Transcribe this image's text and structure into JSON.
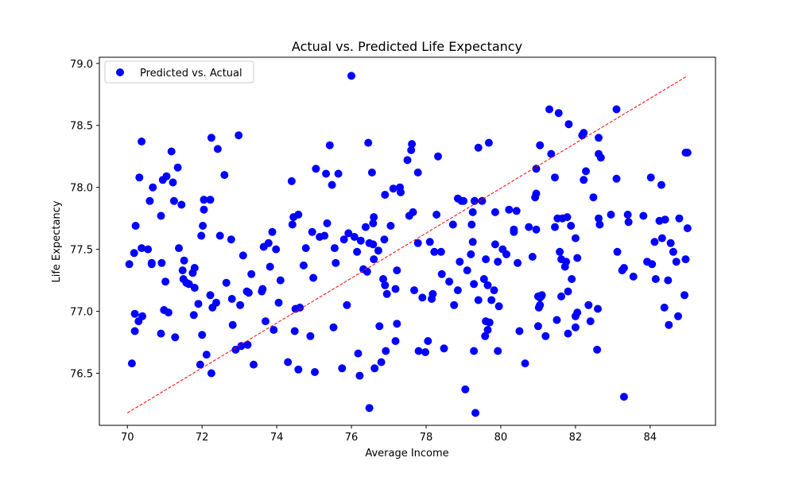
{
  "chart_data": {
    "type": "scatter",
    "title": "Actual vs. Predicted Life Expectancy",
    "xlabel": "Average Income",
    "ylabel": "Life Expectancy",
    "xlim": [
      69.25,
      85.75
    ],
    "ylim": [
      76.08,
      79.05
    ],
    "xticks": [
      70,
      72,
      74,
      76,
      78,
      80,
      82,
      84
    ],
    "yticks": [
      76.5,
      77.0,
      77.5,
      78.0,
      78.5,
      79.0
    ],
    "ytick_labels": [
      "76.5",
      "77.0",
      "77.5",
      "78.0",
      "78.5",
      "79.0"
    ],
    "grid": false,
    "legend_position": "top-left",
    "colors": {
      "points": "#0000ff",
      "trend": "#ff0000"
    },
    "series": [
      {
        "name": "Predicted vs. Actual",
        "kind": "scatter",
        "points": [
          [
            70.05,
            77.38
          ],
          [
            70.12,
            76.58
          ],
          [
            70.18,
            77.47
          ],
          [
            70.2,
            76.98
          ],
          [
            70.22,
            77.69
          ],
          [
            70.2,
            76.84
          ],
          [
            70.3,
            76.92
          ],
          [
            70.32,
            78.08
          ],
          [
            70.38,
            78.37
          ],
          [
            70.38,
            77.51
          ],
          [
            70.4,
            76.96
          ],
          [
            70.55,
            77.5
          ],
          [
            70.6,
            77.89
          ],
          [
            70.68,
            78.0
          ],
          [
            70.65,
            77.38
          ],
          [
            70.65,
            77.39
          ],
          [
            70.9,
            76.82
          ],
          [
            70.9,
            77.77
          ],
          [
            70.92,
            77.39
          ],
          [
            70.95,
            78.06
          ],
          [
            70.98,
            77.01
          ],
          [
            71.02,
            77.24
          ],
          [
            71.05,
            78.09
          ],
          [
            71.1,
            76.99
          ],
          [
            71.18,
            78.29
          ],
          [
            71.22,
            78.04
          ],
          [
            71.25,
            77.89
          ],
          [
            71.28,
            76.79
          ],
          [
            71.35,
            78.16
          ],
          [
            71.38,
            77.51
          ],
          [
            71.45,
            77.86
          ],
          [
            71.48,
            77.33
          ],
          [
            71.5,
            77.26
          ],
          [
            71.52,
            77.41
          ],
          [
            71.58,
            77.23
          ],
          [
            71.65,
            77.22
          ],
          [
            71.75,
            77.31
          ],
          [
            71.78,
            76.97
          ],
          [
            71.8,
            77.35
          ],
          [
            71.8,
            77.19
          ],
          [
            71.9,
            77.06
          ],
          [
            71.95,
            76.57
          ],
          [
            71.98,
            77.61
          ],
          [
            72.0,
            76.81
          ],
          [
            72.02,
            77.69
          ],
          [
            72.05,
            77.82
          ],
          [
            72.05,
            77.9
          ],
          [
            72.12,
            76.65
          ],
          [
            72.22,
            77.9
          ],
          [
            72.22,
            77.13
          ],
          [
            72.25,
            78.4
          ],
          [
            72.25,
            76.5
          ],
          [
            72.28,
            77.03
          ],
          [
            72.38,
            77.07
          ],
          [
            72.42,
            78.31
          ],
          [
            72.48,
            77.61
          ],
          [
            72.6,
            78.1
          ],
          [
            72.65,
            77.23
          ],
          [
            72.78,
            77.58
          ],
          [
            72.8,
            77.1
          ],
          [
            72.82,
            76.89
          ],
          [
            72.9,
            76.69
          ],
          [
            72.98,
            78.42
          ],
          [
            73.02,
            77.05
          ],
          [
            73.05,
            76.72
          ],
          [
            73.1,
            77.45
          ],
          [
            73.2,
            77.16
          ],
          [
            73.22,
            76.73
          ],
          [
            73.25,
            77.15
          ],
          [
            73.32,
            77.3
          ],
          [
            73.38,
            76.57
          ],
          [
            73.6,
            77.16
          ],
          [
            73.62,
            77.18
          ],
          [
            73.65,
            77.52
          ],
          [
            73.7,
            76.92
          ],
          [
            73.78,
            77.55
          ],
          [
            73.82,
            77.36
          ],
          [
            73.88,
            77.64
          ],
          [
            73.92,
            76.85
          ],
          [
            73.98,
            77.5
          ],
          [
            74.05,
            77.07
          ],
          [
            74.1,
            77.25
          ],
          [
            74.3,
            76.59
          ],
          [
            74.4,
            78.05
          ],
          [
            74.42,
            77.7
          ],
          [
            74.45,
            77.76
          ],
          [
            74.48,
            76.84
          ],
          [
            74.5,
            77.02
          ],
          [
            74.58,
            77.78
          ],
          [
            74.62,
            77.03
          ],
          [
            74.58,
            76.53
          ],
          [
            74.72,
            77.37
          ],
          [
            74.78,
            77.51
          ],
          [
            74.9,
            76.8
          ],
          [
            74.95,
            77.64
          ],
          [
            74.98,
            77.27
          ],
          [
            75.05,
            78.15
          ],
          [
            75.02,
            76.51
          ],
          [
            75.15,
            77.6
          ],
          [
            75.28,
            77.61
          ],
          [
            75.35,
            77.71
          ],
          [
            75.32,
            78.11
          ],
          [
            75.42,
            78.34
          ],
          [
            75.48,
            78.02
          ],
          [
            75.52,
            76.87
          ],
          [
            75.55,
            77.51
          ],
          [
            75.58,
            77.39
          ],
          [
            75.65,
            78.11
          ],
          [
            75.75,
            76.54
          ],
          [
            75.8,
            77.58
          ],
          [
            75.88,
            77.05
          ],
          [
            75.92,
            77.63
          ],
          [
            76.0,
            78.9
          ],
          [
            76.08,
            77.6
          ],
          [
            76.15,
            77.48
          ],
          [
            76.18,
            76.66
          ],
          [
            76.22,
            76.48
          ],
          [
            76.25,
            77.57
          ],
          [
            76.32,
            77.34
          ],
          [
            76.38,
            77.68
          ],
          [
            76.42,
            77.32
          ],
          [
            76.45,
            78.36
          ],
          [
            76.48,
            77.55
          ],
          [
            76.48,
            76.22
          ],
          [
            76.55,
            78.12
          ],
          [
            76.58,
            77.54
          ],
          [
            76.58,
            77.71
          ],
          [
            76.6,
            77.76
          ],
          [
            76.6,
            77.42
          ],
          [
            76.62,
            76.54
          ],
          [
            76.72,
            77.49
          ],
          [
            76.75,
            76.88
          ],
          [
            76.8,
            76.59
          ],
          [
            76.85,
            77.26
          ],
          [
            76.88,
            77.58
          ],
          [
            76.9,
            77.94
          ],
          [
            76.9,
            77.21
          ],
          [
            76.92,
            76.68
          ],
          [
            76.95,
            77.14
          ],
          [
            77.05,
            77.69
          ],
          [
            77.12,
            77.99
          ],
          [
            77.18,
            76.76
          ],
          [
            77.18,
            77.18
          ],
          [
            77.22,
            77.33
          ],
          [
            77.22,
            76.9
          ],
          [
            77.3,
            78.0
          ],
          [
            77.32,
            77.96
          ],
          [
            77.5,
            78.22
          ],
          [
            77.55,
            77.77
          ],
          [
            77.6,
            78.3
          ],
          [
            77.62,
            78.35
          ],
          [
            77.65,
            77.8
          ],
          [
            77.68,
            77.17
          ],
          [
            77.78,
            77.55
          ],
          [
            77.78,
            78.12
          ],
          [
            77.8,
            76.68
          ],
          [
            77.9,
            77.11
          ],
          [
            77.98,
            76.67
          ],
          [
            78.05,
            76.76
          ],
          [
            78.1,
            77.56
          ],
          [
            78.15,
            77.1
          ],
          [
            78.18,
            77.14
          ],
          [
            78.22,
            77.48
          ],
          [
            78.28,
            77.78
          ],
          [
            78.32,
            78.25
          ],
          [
            78.4,
            77.48
          ],
          [
            78.42,
            77.3
          ],
          [
            78.48,
            76.7
          ],
          [
            78.62,
            77.24
          ],
          [
            78.72,
            77.7
          ],
          [
            78.75,
            77.05
          ],
          [
            78.85,
            77.17
          ],
          [
            78.85,
            77.91
          ],
          [
            78.9,
            77.4
          ],
          [
            78.95,
            77.89
          ],
          [
            79.0,
            77.89
          ],
          [
            79.05,
            76.37
          ],
          [
            79.1,
            77.33
          ],
          [
            79.2,
            77.46
          ],
          [
            79.22,
            77.7
          ],
          [
            79.25,
            77.56
          ],
          [
            79.25,
            77.8
          ],
          [
            79.28,
            76.68
          ],
          [
            79.28,
            77.22
          ],
          [
            79.3,
            77.89
          ],
          [
            79.32,
            76.18
          ],
          [
            79.4,
            78.32
          ],
          [
            79.4,
            77.09
          ],
          [
            79.5,
            77.89
          ],
          [
            79.55,
            77.26
          ],
          [
            79.58,
            76.8
          ],
          [
            79.6,
            76.92
          ],
          [
            79.6,
            77.42
          ],
          [
            79.65,
            77.21
          ],
          [
            79.65,
            76.85
          ],
          [
            79.68,
            78.36
          ],
          [
            79.7,
            76.91
          ],
          [
            79.75,
            77.09
          ],
          [
            79.82,
            77.17
          ],
          [
            79.85,
            77.8
          ],
          [
            79.85,
            77.54
          ],
          [
            79.92,
            77.4
          ],
          [
            79.92,
            76.68
          ],
          [
            79.95,
            77.04
          ],
          [
            80.05,
            77.5
          ],
          [
            80.15,
            77.46
          ],
          [
            80.22,
            77.82
          ],
          [
            80.35,
            77.64
          ],
          [
            80.35,
            77.66
          ],
          [
            80.42,
            77.81
          ],
          [
            80.45,
            77.39
          ],
          [
            80.5,
            76.84
          ],
          [
            80.65,
            76.58
          ],
          [
            80.75,
            77.68
          ],
          [
            80.85,
            77.44
          ],
          [
            80.92,
            77.92
          ],
          [
            80.95,
            77.95
          ],
          [
            80.95,
            77.66
          ],
          [
            80.95,
            78.15
          ],
          [
            81.0,
            76.88
          ],
          [
            81.0,
            77.12
          ],
          [
            81.02,
            77.03
          ],
          [
            81.05,
            77.11
          ],
          [
            81.05,
            78.34
          ],
          [
            81.05,
            77.05
          ],
          [
            81.08,
            77.12
          ],
          [
            81.1,
            77.13
          ],
          [
            81.2,
            76.8
          ],
          [
            81.3,
            78.63
          ],
          [
            81.35,
            78.27
          ],
          [
            81.45,
            78.08
          ],
          [
            81.45,
            77.68
          ],
          [
            81.5,
            76.93
          ],
          [
            81.52,
            77.75
          ],
          [
            81.55,
            78.6
          ],
          [
            81.58,
            77.48
          ],
          [
            81.62,
            77.42
          ],
          [
            81.62,
            77.12
          ],
          [
            81.65,
            77.75
          ],
          [
            81.72,
            77.36
          ],
          [
            81.75,
            77.4
          ],
          [
            81.78,
            77.76
          ],
          [
            81.8,
            76.82
          ],
          [
            81.8,
            77.16
          ],
          [
            81.82,
            78.51
          ],
          [
            81.88,
            77.69
          ],
          [
            81.9,
            77.26
          ],
          [
            82.0,
            76.96
          ],
          [
            82.0,
            77.59
          ],
          [
            82.0,
            76.87
          ],
          [
            82.05,
            77.43
          ],
          [
            82.05,
            76.99
          ],
          [
            82.18,
            78.42
          ],
          [
            82.22,
            78.06
          ],
          [
            82.22,
            78.44
          ],
          [
            82.28,
            78.13
          ],
          [
            82.35,
            77.05
          ],
          [
            82.4,
            76.92
          ],
          [
            82.48,
            77.92
          ],
          [
            82.58,
            76.69
          ],
          [
            82.6,
            77.02
          ],
          [
            82.62,
            78.4
          ],
          [
            82.62,
            78.27
          ],
          [
            82.62,
            77.75
          ],
          [
            82.68,
            78.24
          ],
          [
            82.65,
            77.7
          ],
          [
            82.95,
            77.78
          ],
          [
            83.1,
            78.63
          ],
          [
            83.1,
            78.07
          ],
          [
            83.12,
            77.48
          ],
          [
            83.25,
            77.33
          ],
          [
            83.3,
            76.31
          ],
          [
            83.3,
            77.35
          ],
          [
            83.4,
            77.78
          ],
          [
            83.42,
            77.72
          ],
          [
            83.55,
            77.28
          ],
          [
            83.82,
            77.77
          ],
          [
            83.92,
            77.4
          ],
          [
            84.02,
            78.08
          ],
          [
            84.05,
            77.38
          ],
          [
            84.12,
            77.56
          ],
          [
            84.15,
            77.26
          ],
          [
            84.25,
            77.73
          ],
          [
            84.3,
            78.02
          ],
          [
            84.32,
            77.59
          ],
          [
            84.38,
            77.03
          ],
          [
            84.4,
            77.74
          ],
          [
            84.48,
            77.25
          ],
          [
            84.5,
            76.89
          ],
          [
            84.55,
            77.55
          ],
          [
            84.62,
            77.48
          ],
          [
            84.7,
            77.4
          ],
          [
            84.75,
            76.96
          ],
          [
            84.78,
            77.75
          ],
          [
            84.92,
            77.13
          ],
          [
            84.95,
            78.28
          ],
          [
            84.95,
            77.42
          ],
          [
            85.0,
            78.28
          ],
          [
            85.0,
            77.67
          ]
        ]
      },
      {
        "kind": "line",
        "style": "dashed",
        "points": [
          [
            70.0,
            76.18
          ],
          [
            85.0,
            78.9
          ]
        ]
      }
    ]
  }
}
